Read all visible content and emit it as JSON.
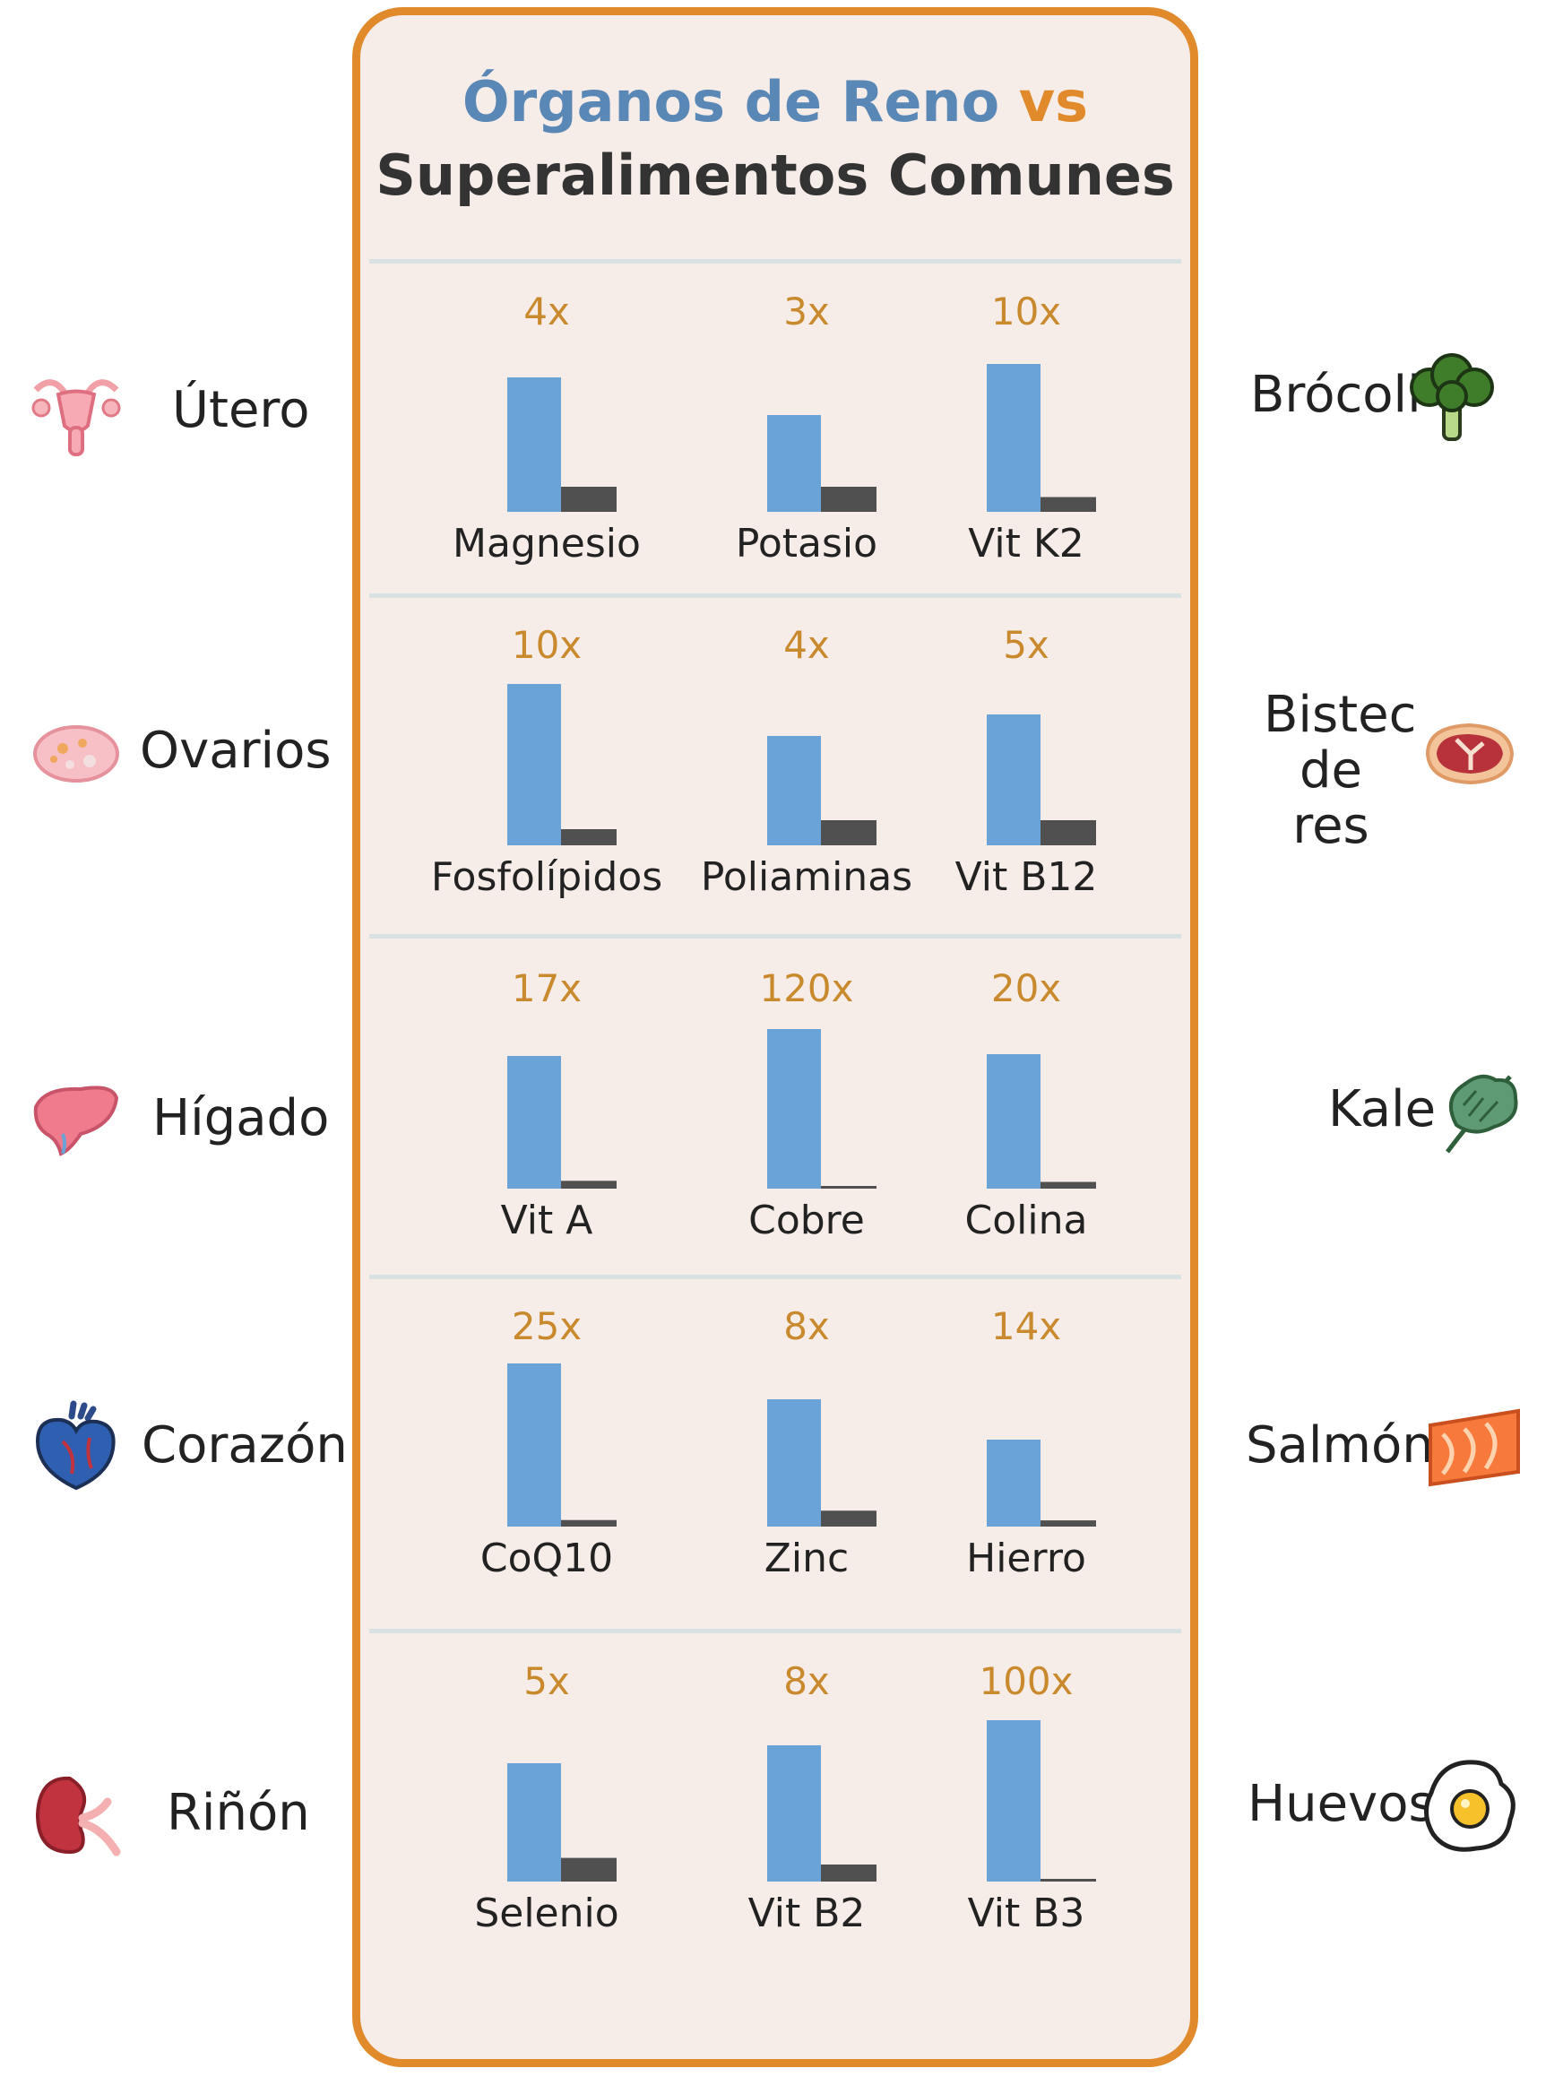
{
  "title": {
    "part1": "Órganos de Reno",
    "vs": "vs",
    "line2": "Superalimentos Comunes"
  },
  "colors": {
    "organ_bar": "#6aa3d8",
    "food_bar": "#505050",
    "multiplier": "#c98a2e",
    "border": "#e08a2c",
    "panel": "#f6ece8"
  },
  "organs": [
    {
      "name": "Útero",
      "icon": "uterus-icon"
    },
    {
      "name": "Ovarios",
      "icon": "ovaries-icon"
    },
    {
      "name": "Hígado",
      "icon": "liver-icon"
    },
    {
      "name": "Corazón",
      "icon": "heart-organ-icon"
    },
    {
      "name": "Riñón",
      "icon": "kidney-icon"
    }
  ],
  "foods": [
    {
      "name": "Brócoli",
      "icon": "broccoli-icon"
    },
    {
      "name": "Bistec de res",
      "icon": "steak-icon"
    },
    {
      "name": "Kale",
      "icon": "kale-icon"
    },
    {
      "name": "Salmón",
      "icon": "salmon-icon"
    },
    {
      "name": "Huevos",
      "icon": "egg-icon"
    }
  ],
  "chart_data": {
    "type": "bar",
    "series": [
      {
        "name": "Órganos de Reno",
        "color": "#6aa3d8"
      },
      {
        "name": "Superalimentos Comunes",
        "color": "#505050"
      }
    ],
    "rows": [
      {
        "organ": "Útero",
        "food": "Brócoli",
        "items": [
          {
            "nutrient": "Magnesio",
            "multiplier": "4x",
            "ratio": 4
          },
          {
            "nutrient": "Potasio",
            "multiplier": "3x",
            "ratio": 3
          },
          {
            "nutrient": "Vit K2",
            "multiplier": "10x",
            "ratio": 10
          }
        ]
      },
      {
        "organ": "Ovarios",
        "food": "Bistec de res",
        "items": [
          {
            "nutrient": "Fosfolípidos",
            "multiplier": "10x",
            "ratio": 10
          },
          {
            "nutrient": "Poliaminas",
            "multiplier": "4x",
            "ratio": 4
          },
          {
            "nutrient": "Vit B12",
            "multiplier": "5x",
            "ratio": 5
          }
        ]
      },
      {
        "organ": "Hígado",
        "food": "Kale",
        "items": [
          {
            "nutrient": "Vit A",
            "multiplier": "17x",
            "ratio": 17
          },
          {
            "nutrient": "Cobre",
            "multiplier": "120x",
            "ratio": 120
          },
          {
            "nutrient": "Colina",
            "multiplier": "20x",
            "ratio": 20
          }
        ]
      },
      {
        "organ": "Corazón",
        "food": "Salmón",
        "items": [
          {
            "nutrient": "CoQ10",
            "multiplier": "25x",
            "ratio": 25
          },
          {
            "nutrient": "Zinc",
            "multiplier": "8x",
            "ratio": 8
          },
          {
            "nutrient": "Hierro",
            "multiplier": "14x",
            "ratio": 14
          }
        ]
      },
      {
        "organ": "Riñón",
        "food": "Huevos",
        "items": [
          {
            "nutrient": "Selenio",
            "multiplier": "5x",
            "ratio": 5
          },
          {
            "nutrient": "Vit B2",
            "multiplier": "8x",
            "ratio": 8
          },
          {
            "nutrient": "Vit B3",
            "multiplier": "100x",
            "ratio": 100
          }
        ]
      }
    ]
  }
}
